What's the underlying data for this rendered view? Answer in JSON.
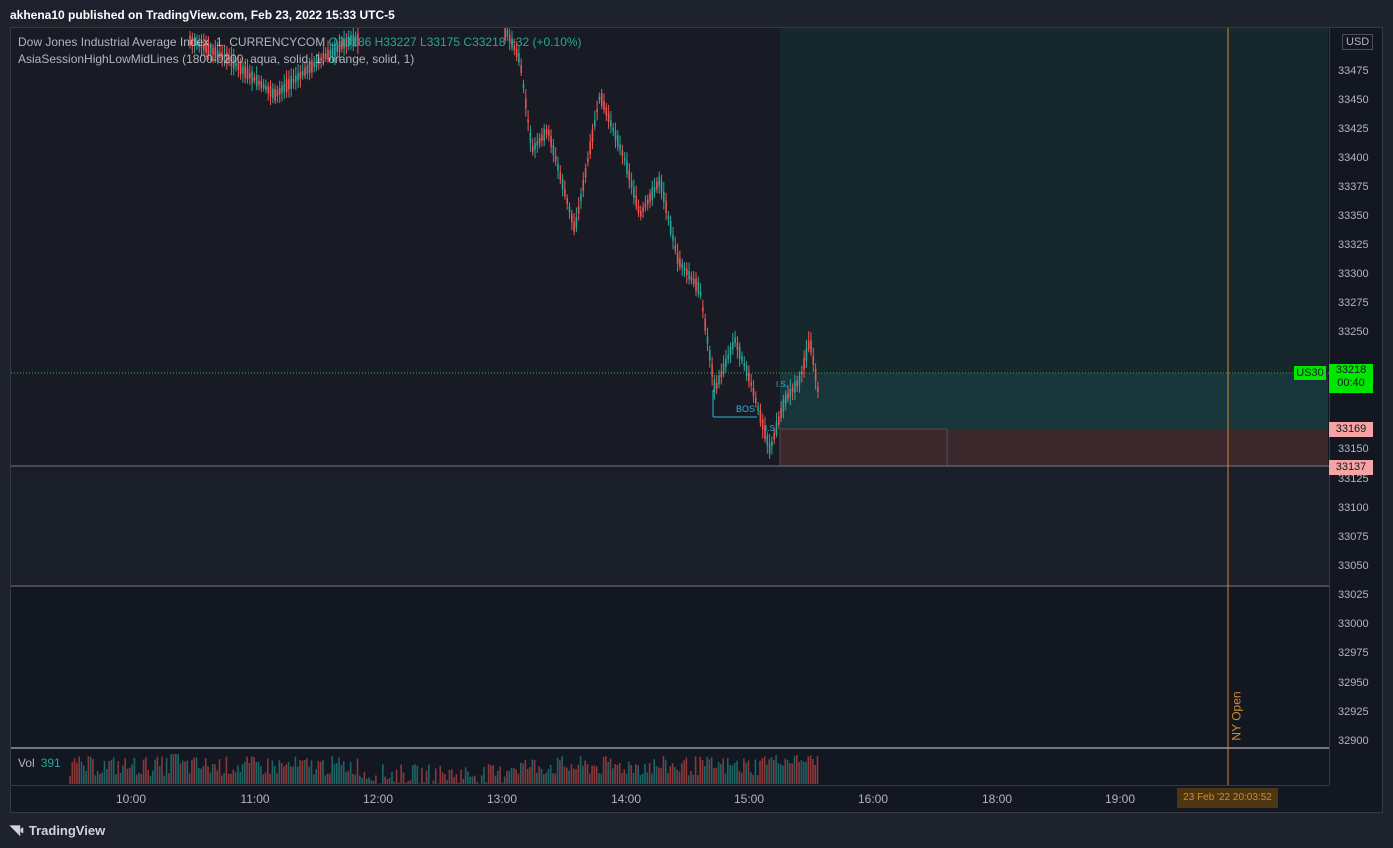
{
  "header": {
    "published_text": "akhena10 published on TradingView.com, Feb 23, 2022 15:33 UTC-5"
  },
  "legend": {
    "symbol": "Dow Jones Industrial Average Index, 1, CURRENCYCOM",
    "open": "O33186",
    "high": "H33227",
    "low": "L33175",
    "close": "C33218",
    "change": "+32 (+0.10%)",
    "indicator": "AsiaSessionHighLowMidLines (1800-0200, aqua, solid, 1, orange, solid, 1)"
  },
  "price_axis": {
    "currency": "USD",
    "ticks": [
      "33475",
      "33450",
      "33425",
      "33400",
      "33375",
      "33350",
      "33325",
      "33300",
      "33275",
      "33250",
      "33150",
      "33125",
      "33100",
      "33075",
      "33050",
      "33025",
      "33000",
      "32975",
      "32950",
      "32925",
      "32900"
    ],
    "last_label": "US30",
    "last_price": "33218",
    "countdown": "00:40",
    "upper_label": "33169",
    "lower_label": "33137"
  },
  "time_axis": {
    "ticks": [
      "10:00",
      "11:00",
      "12:00",
      "13:00",
      "14:00",
      "15:00",
      "16:00",
      "18:00",
      "19:00"
    ],
    "crosshair_label": "23 Feb '22 20:03:52"
  },
  "annotations": {
    "bos": "BOS",
    "is1": "I.S.",
    "is2": "I.S.",
    "ny_open": "NY Open"
  },
  "volume": {
    "label": "Vol",
    "value": "391"
  },
  "footer": {
    "brand": "TradingView"
  },
  "colors": {
    "up": "#26a69a",
    "down": "#ef5350",
    "last_price": "#00e600",
    "zone": "#f5a3a3",
    "ny_open": "#d18b2c"
  }
}
